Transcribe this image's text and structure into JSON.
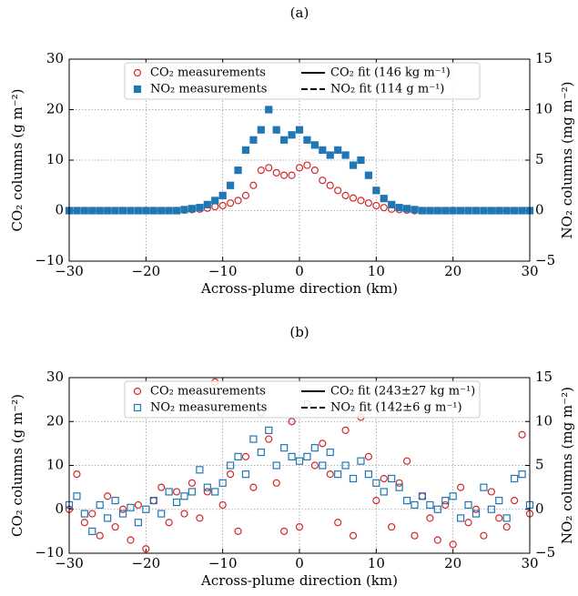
{
  "chart_data": [
    {
      "type": "scatter",
      "title": "(a)",
      "xlabel": "Across-plume direction (km)",
      "ylabel": "CO₂ columns (g m⁻²)",
      "y2label": "NO₂ columns (mg m⁻²)",
      "xlim": [
        -30,
        30
      ],
      "ylim": [
        -10,
        30
      ],
      "y2lim": [
        -5,
        15
      ],
      "grid": true,
      "legend": "upper center",
      "xticks": [
        {
          "value": -30,
          "label": "−30"
        },
        {
          "value": -20,
          "label": "−20"
        },
        {
          "value": -10,
          "label": "−10"
        },
        0,
        10,
        20,
        30
      ],
      "yticks": [
        {
          "value": -10,
          "label": "−10"
        },
        0,
        10,
        20,
        30
      ],
      "y2ticks": [
        {
          "value": -5,
          "label": "−5"
        },
        0,
        5,
        10,
        15
      ],
      "series": [
        {
          "name": "CO₂ measurements",
          "type": "scatter",
          "marker": "circle",
          "filled": false,
          "color": "#d62728",
          "x": [
            -30,
            -29,
            -28,
            -27,
            -26,
            -25,
            -24,
            -23,
            -22,
            -21,
            -20,
            -19,
            -18,
            -17,
            -16,
            -15,
            -14,
            -13,
            -12,
            -11,
            -10,
            -9,
            -8,
            -7,
            -6,
            -5,
            -4,
            -3,
            -2,
            -1,
            0,
            1,
            2,
            3,
            4,
            5,
            6,
            7,
            8,
            9,
            10,
            11,
            12,
            13,
            14,
            15,
            16,
            17,
            18,
            19,
            20,
            21,
            22,
            23,
            24,
            25,
            26,
            27,
            28,
            29,
            30
          ],
          "values": [
            0,
            0,
            0,
            0,
            0,
            0,
            0,
            0,
            0,
            0,
            0,
            0,
            0,
            0,
            0,
            0.1,
            0.2,
            0.3,
            0.5,
            0.8,
            1,
            1.5,
            2,
            3,
            5,
            8,
            8.5,
            7.5,
            7,
            7,
            8.5,
            9,
            8,
            6,
            5,
            4,
            3,
            2.5,
            2,
            1.5,
            1,
            0.6,
            0.3,
            0.2,
            0.1,
            0,
            0,
            0,
            0,
            0,
            0,
            0,
            0,
            0,
            0,
            0,
            0,
            0,
            0,
            0,
            0
          ]
        },
        {
          "name": "NO₂ measurements",
          "type": "scatter",
          "marker": "square",
          "filled": true,
          "color": "#1f77b4",
          "axis": "y2",
          "x": [
            -30,
            -29,
            -28,
            -27,
            -26,
            -25,
            -24,
            -23,
            -22,
            -21,
            -20,
            -19,
            -18,
            -17,
            -16,
            -15,
            -14,
            -13,
            -12,
            -11,
            -10,
            -9,
            -8,
            -7,
            -6,
            -5,
            -4,
            -3,
            -2,
            -1,
            0,
            1,
            2,
            3,
            4,
            5,
            6,
            7,
            8,
            9,
            10,
            11,
            12,
            13,
            14,
            15,
            16,
            17,
            18,
            19,
            20,
            21,
            22,
            23,
            24,
            25,
            26,
            27,
            28,
            29,
            30
          ],
          "values": [
            0,
            0,
            0,
            0,
            0,
            0,
            0,
            0,
            0,
            0,
            0,
            0,
            0,
            0,
            0,
            0.1,
            0.2,
            0.3,
            0.6,
            1,
            1.5,
            2.5,
            4,
            6,
            7,
            8,
            10,
            8,
            7,
            7.5,
            8,
            7,
            6.5,
            6,
            5.5,
            6,
            5.5,
            4.5,
            5,
            3.5,
            2,
            1.2,
            0.6,
            0.3,
            0.2,
            0.1,
            0,
            0,
            0,
            0,
            0,
            0,
            0,
            0,
            0,
            0,
            0,
            0,
            0,
            0,
            0
          ]
        },
        {
          "name": "CO₂ fit (146 kg m⁻¹)",
          "type": "line",
          "style": "solid",
          "color": "#000000",
          "x": [
            -30,
            -25,
            -20,
            -16,
            -14,
            -12,
            -10,
            -9,
            -8,
            -7,
            -6,
            -5,
            -4,
            -3,
            -2,
            -1,
            0,
            1,
            2,
            3,
            4,
            5,
            6,
            7,
            8,
            9,
            10,
            12,
            14,
            16,
            20,
            25,
            30
          ],
          "values": [
            0,
            0,
            0,
            0.11,
            0.34,
            0.89,
            1.98,
            2.78,
            3.75,
            4.87,
            6.07,
            7.26,
            8.35,
            9.23,
            9.8,
            10,
            9.8,
            9.23,
            8.35,
            7.26,
            6.07,
            4.87,
            3.75,
            2.78,
            1.98,
            1.35,
            0.89,
            0.34,
            0.11,
            0.03,
            0,
            0,
            0
          ]
        },
        {
          "name": "NO₂ fit (114 g m⁻¹)",
          "type": "line",
          "style": "dashed",
          "color": "#000000",
          "axis": "y2",
          "x": [
            -30,
            -25,
            -20,
            -16,
            -14,
            -12,
            -10,
            -9,
            -8,
            -7,
            -6,
            -5,
            -4,
            -3,
            -2,
            -1,
            0,
            1,
            2,
            3,
            4,
            5,
            6,
            7,
            8,
            9,
            10,
            12,
            14,
            16,
            20,
            25,
            30
          ],
          "values": [
            0,
            0,
            0,
            0.09,
            0.27,
            0.71,
            1.58,
            2.22,
            3,
            3.9,
            4.86,
            5.81,
            6.68,
            7.38,
            7.84,
            8,
            7.84,
            7.38,
            6.68,
            5.81,
            4.86,
            3.9,
            3,
            2.22,
            1.58,
            1.08,
            0.71,
            0.27,
            0.09,
            0.02,
            0,
            0,
            0
          ]
        }
      ]
    },
    {
      "type": "scatter",
      "title": "(b)",
      "xlabel": "Across-plume direction (km)",
      "ylabel": "CO₂ columns (g m⁻²)",
      "y2label": "NO₂ columns (mg m⁻²)",
      "xlim": [
        -30,
        30
      ],
      "ylim": [
        -10,
        30
      ],
      "y2lim": [
        -5,
        15
      ],
      "grid": true,
      "legend": "upper center",
      "xticks": [
        {
          "value": -30,
          "label": "−30"
        },
        {
          "value": -20,
          "label": "−20"
        },
        {
          "value": -10,
          "label": "−10"
        },
        0,
        10,
        20,
        30
      ],
      "yticks": [
        {
          "value": -10,
          "label": "−10"
        },
        0,
        10,
        20,
        30
      ],
      "y2ticks": [
        {
          "value": -5,
          "label": "−5"
        },
        0,
        5,
        10,
        15
      ],
      "series": [
        {
          "name": "CO₂ measurements",
          "type": "scatter",
          "marker": "circle",
          "filled": false,
          "color": "#d62728",
          "x": [
            -30,
            -29,
            -28,
            -27,
            -26,
            -25,
            -24,
            -23,
            -22,
            -21,
            -20,
            -19,
            -18,
            -17,
            -16,
            -15,
            -14,
            -13,
            -12,
            -11,
            -10,
            -9,
            -8,
            -7,
            -6,
            -5,
            -4,
            -3,
            -2,
            -1,
            0,
            1,
            2,
            3,
            4,
            5,
            6,
            7,
            8,
            9,
            10,
            11,
            12,
            13,
            14,
            15,
            16,
            17,
            18,
            19,
            20,
            21,
            22,
            23,
            24,
            25,
            26,
            27,
            28,
            29,
            30
          ],
          "values": [
            0,
            8,
            -3,
            -1,
            -6,
            3,
            -4,
            0,
            -7,
            1,
            -9,
            2,
            5,
            -3,
            4,
            -1,
            6,
            -2,
            4,
            29,
            1,
            8,
            -5,
            12,
            5,
            22,
            16,
            6,
            -5,
            20,
            -4,
            24,
            10,
            15,
            8,
            -3,
            18,
            -6,
            21,
            12,
            2,
            7,
            -4,
            6,
            11,
            -6,
            3,
            -2,
            -7,
            1,
            -8,
            5,
            -3,
            0,
            -6,
            4,
            -2,
            -4,
            2,
            17,
            -1
          ]
        },
        {
          "name": "NO₂ measurements",
          "type": "scatter",
          "marker": "square",
          "filled": false,
          "color": "#1f77b4",
          "axis": "y2",
          "x": [
            -30,
            -29,
            -28,
            -27,
            -26,
            -25,
            -24,
            -23,
            -22,
            -21,
            -20,
            -19,
            -18,
            -17,
            -16,
            -15,
            -14,
            -13,
            -12,
            -11,
            -10,
            -9,
            -8,
            -7,
            -6,
            -5,
            -4,
            -3,
            -2,
            -1,
            0,
            1,
            2,
            3,
            4,
            5,
            6,
            7,
            8,
            9,
            10,
            11,
            12,
            13,
            14,
            15,
            16,
            17,
            18,
            19,
            20,
            21,
            22,
            23,
            24,
            25,
            26,
            27,
            28,
            29,
            30
          ],
          "values": [
            0.5,
            1.5,
            -0.5,
            -2.5,
            0.5,
            -1,
            1,
            -0.5,
            0.2,
            -1.5,
            0,
            1,
            -0.5,
            2,
            0.8,
            1.5,
            2,
            4.5,
            2.5,
            2,
            3,
            5,
            6,
            4,
            8,
            6.5,
            9,
            5,
            7,
            6,
            5.5,
            6,
            7,
            5,
            6.5,
            4,
            5,
            3.5,
            5.5,
            4,
            3,
            2,
            3.5,
            2.5,
            1,
            0.5,
            1.5,
            0.5,
            0,
            1,
            1.5,
            -1,
            0.5,
            -0.5,
            2.5,
            0,
            1,
            -1,
            3.5,
            4,
            0.5
          ]
        },
        {
          "name": "CO₂ fit (243±27 kg m⁻¹)",
          "type": "line",
          "style": "solid",
          "color": "#000000",
          "x": [
            -30,
            -25,
            -20,
            -16,
            -14,
            -12,
            -10,
            -9,
            -8,
            -7,
            -6,
            -5,
            -4,
            -3,
            -2,
            -1,
            0,
            1,
            2,
            3,
            4,
            5,
            6,
            7,
            8,
            9,
            10,
            12,
            14,
            16,
            20,
            25,
            30
          ],
          "values": [
            0,
            0.02,
            0.2,
            0.88,
            1.62,
            2.76,
            4.32,
            5.25,
            6.25,
            7.28,
            8.31,
            9.3,
            10.19,
            10.94,
            11.52,
            11.88,
            12,
            11.88,
            11.52,
            10.94,
            10.19,
            9.3,
            8.31,
            7.28,
            6.25,
            5.25,
            4.32,
            2.76,
            1.62,
            0.88,
            0.2,
            0.02,
            0
          ]
        },
        {
          "name": "NO₂ fit (142±6 g m⁻¹)",
          "type": "line",
          "style": "dashed",
          "color": "#000000",
          "axis": "y2",
          "x": [
            -30,
            -25,
            -20,
            -16,
            -14,
            -12,
            -10,
            -9,
            -8,
            -7,
            -6,
            -5,
            -4,
            -3,
            -2,
            -1,
            0,
            1,
            2,
            3,
            4,
            5,
            6,
            7,
            8,
            9,
            10,
            12,
            14,
            16,
            20,
            25,
            30
          ],
          "values": [
            0,
            0.01,
            0.11,
            0.5,
            0.92,
            1.56,
            2.45,
            2.98,
            3.54,
            4.13,
            4.71,
            5.27,
            5.77,
            6.2,
            6.53,
            6.73,
            6.8,
            6.73,
            6.53,
            6.2,
            5.77,
            5.27,
            4.71,
            4.13,
            3.54,
            2.98,
            2.45,
            1.56,
            0.92,
            0.5,
            0.11,
            0.01,
            0
          ]
        }
      ]
    }
  ]
}
